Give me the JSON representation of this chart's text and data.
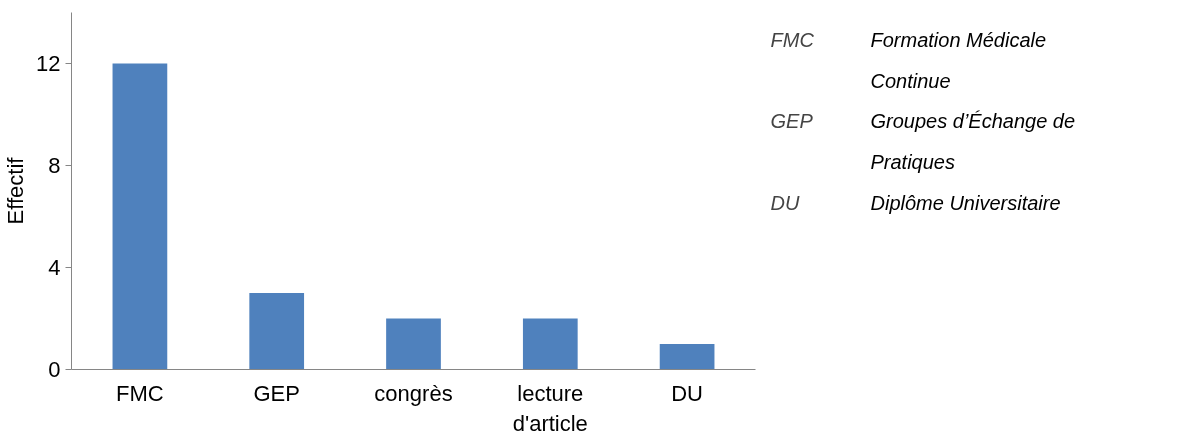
{
  "chart_data": {
    "type": "bar",
    "ylabel": "Effectif",
    "categories": [
      "FMC",
      "GEP",
      "congrès",
      "lecture d'article",
      "DU"
    ],
    "values": [
      12,
      3,
      2,
      2,
      1
    ],
    "color": "#4f81bd",
    "ylim": [
      0,
      14
    ],
    "yticks": [
      0,
      4,
      8,
      12
    ],
    "grid": false,
    "annotations": [
      "FMC",
      "Formation Médicale Continue",
      "GEP",
      "Groupes d’Échange de Pratiques",
      "DU",
      "Diplôme Universitaire"
    ]
  }
}
